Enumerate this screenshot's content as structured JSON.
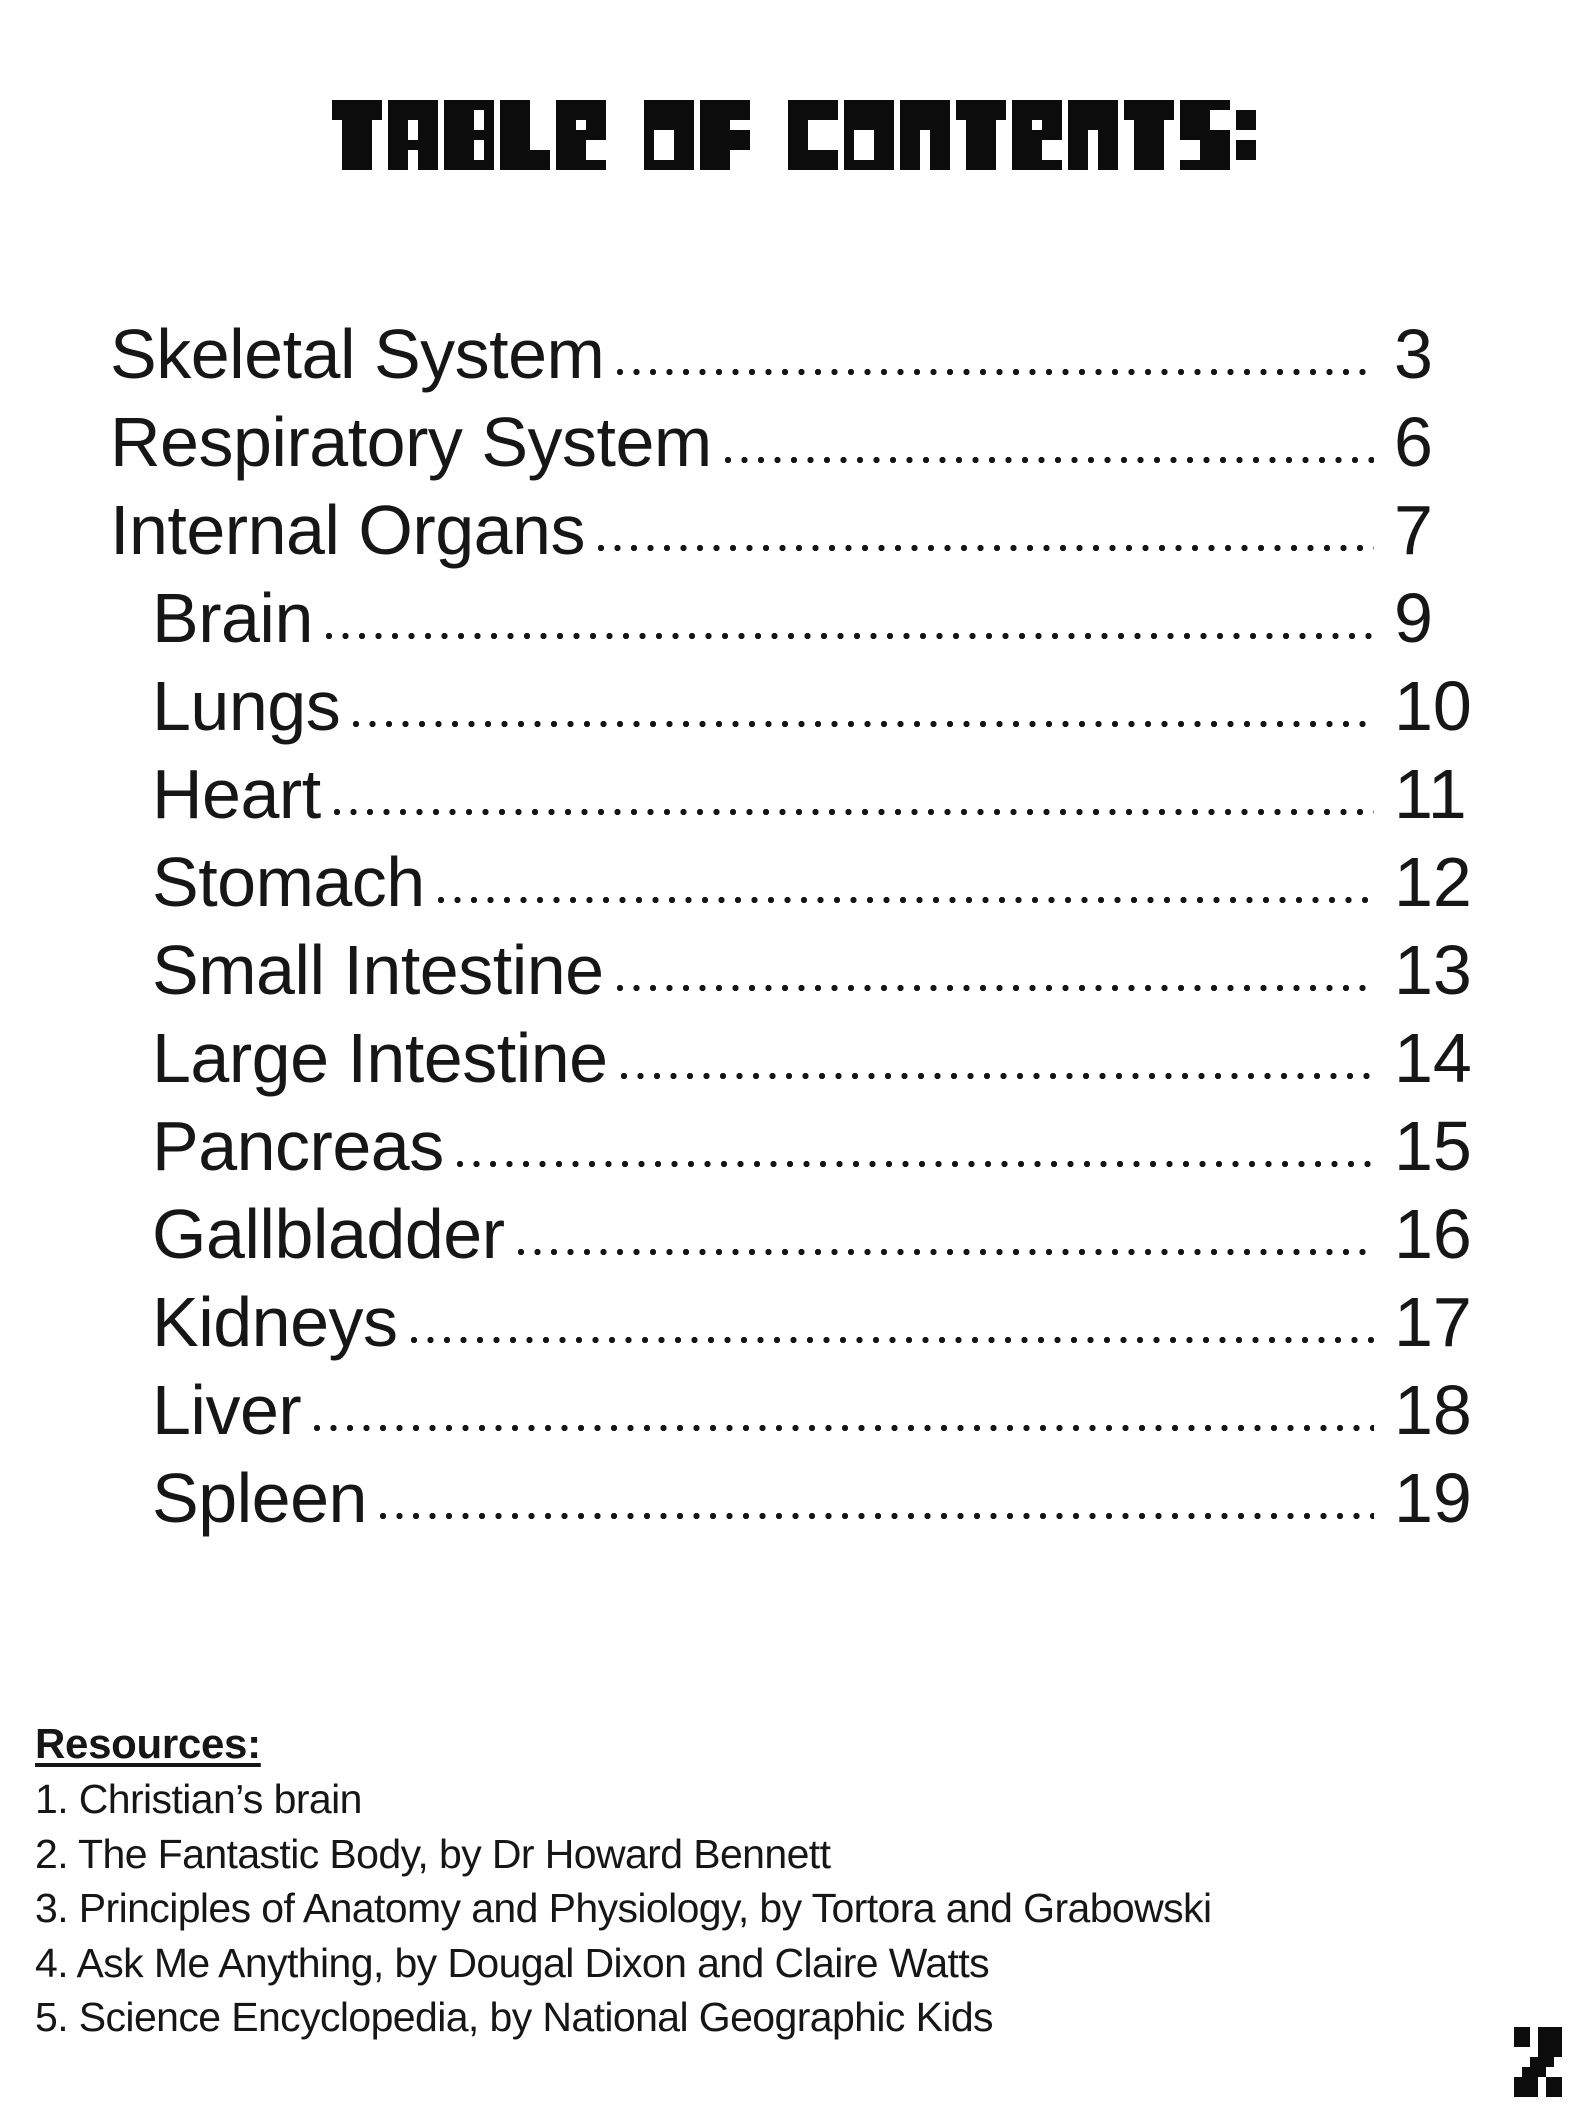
{
  "title": {
    "text": "TABLE OF CONTENTS:"
  },
  "toc": {
    "entries": [
      {
        "label": "Skeletal System",
        "page": "3",
        "level": 0
      },
      {
        "label": "Respiratory System",
        "page": "6",
        "level": 0
      },
      {
        "label": "Internal Organs",
        "page": "7",
        "level": 0
      },
      {
        "label": "Brain",
        "page": "9",
        "level": 1
      },
      {
        "label": "Lungs",
        "page": "10",
        "level": 1
      },
      {
        "label": "Heart",
        "page": "11",
        "level": 1
      },
      {
        "label": "Stomach",
        "page": "12",
        "level": 1
      },
      {
        "label": "Small Intestine",
        "page": "13",
        "level": 1
      },
      {
        "label": "Large Intestine",
        "page": "14",
        "level": 1
      },
      {
        "label": "Pancreas",
        "page": "15",
        "level": 1
      },
      {
        "label": "Gallbladder",
        "page": "16",
        "level": 1
      },
      {
        "label": "Kidneys",
        "page": "17",
        "level": 1
      },
      {
        "label": "Liver",
        "page": "18",
        "level": 1
      },
      {
        "label": "Spleen",
        "page": "19",
        "level": 1
      }
    ]
  },
  "resources": {
    "heading": "Resources:",
    "items": [
      "1. Christian’s brain",
      "2. The Fantastic Body, by Dr Howard Bennett",
      "3. Principles of Anatomy and Physiology, by Tortora and Grabowski",
      "4. Ask Me Anything, by Dougal Dixon and Claire Watts",
      "5. Science Encyclopedia, by National Geographic Kids"
    ]
  },
  "page_number": "2",
  "colors": {
    "text": "#161616",
    "title": "#0c0c0c",
    "background": "#ffffff"
  }
}
